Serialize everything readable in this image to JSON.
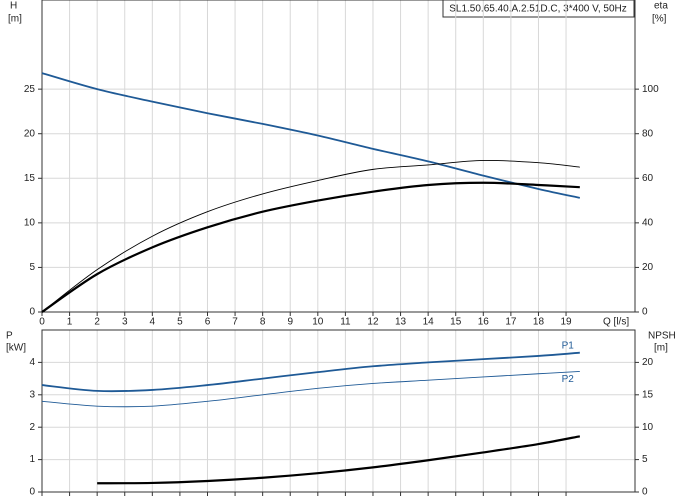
{
  "chart_data": [
    {
      "type": "line",
      "title": "SL1.50.65.40.A.2.51D.C, 3*400 V, 50Hz",
      "y_label": "H",
      "y_unit": "[m]",
      "y2_label": "eta",
      "y2_unit": "[%]",
      "x_label": "Q [l/s]",
      "x": [
        0,
        2,
        4,
        6,
        8,
        10,
        12,
        14,
        16,
        18,
        19.5
      ],
      "series": [
        {
          "color": "#1f5a96",
          "width": 1.8,
          "values": [
            26.8,
            25,
            23.6,
            22.3,
            21.1,
            19.8,
            18.3,
            16.9,
            15.3,
            13.8,
            12.8
          ]
        },
        {
          "color": "#000000",
          "width": 2.2,
          "axis": "y2",
          "values": [
            0,
            17,
            29,
            38,
            45,
            50,
            54,
            57,
            58,
            57,
            56
          ]
        },
        {
          "color": "#000000",
          "width": 0.9,
          "axis": "y2",
          "values": [
            0,
            19,
            34,
            45,
            53,
            59,
            64,
            66,
            68,
            67,
            65
          ]
        }
      ],
      "xlim": [
        0,
        21.5
      ],
      "xticks": [
        0,
        1,
        2,
        3,
        4,
        5,
        6,
        7,
        8,
        9,
        10,
        11,
        12,
        13,
        14,
        15,
        16,
        17,
        18,
        19
      ],
      "ylim": [
        0,
        35
      ],
      "yticks": [
        0,
        5,
        10,
        15,
        20,
        25
      ],
      "y2lim": [
        0,
        140
      ],
      "y2ticks": [
        0,
        20,
        40,
        60,
        80,
        100
      ],
      "grid": true
    },
    {
      "type": "line",
      "y_label": "P",
      "y_unit": "[kW]",
      "y2_label": "NPSH",
      "y2_unit": "[m]",
      "x": [
        0,
        2,
        4,
        6,
        8,
        10,
        12,
        14,
        16,
        18,
        19.5
      ],
      "series": [
        {
          "name": "P1",
          "color": "#1f5a96",
          "width": 1.8,
          "values": [
            3.3,
            3.12,
            3.15,
            3.3,
            3.5,
            3.7,
            3.88,
            4.0,
            4.1,
            4.2,
            4.3
          ]
        },
        {
          "name": "P2",
          "color": "#1f5a96",
          "width": 0.9,
          "values": [
            2.8,
            2.65,
            2.65,
            2.8,
            3.0,
            3.2,
            3.35,
            3.45,
            3.55,
            3.65,
            3.72
          ]
        },
        {
          "color": "#000000",
          "width": 2.2,
          "axis": "y2",
          "values": [
            null,
            1.35,
            1.4,
            1.7,
            2.2,
            2.9,
            3.8,
            4.9,
            6.1,
            7.4,
            8.6
          ]
        }
      ],
      "xlim": [
        0,
        21.5
      ],
      "ylim": [
        0,
        5
      ],
      "yticks": [
        0,
        1,
        2,
        3,
        4
      ],
      "y2lim": [
        0,
        25
      ],
      "y2ticks": [
        0,
        5,
        10,
        15,
        20
      ],
      "grid": true
    }
  ]
}
